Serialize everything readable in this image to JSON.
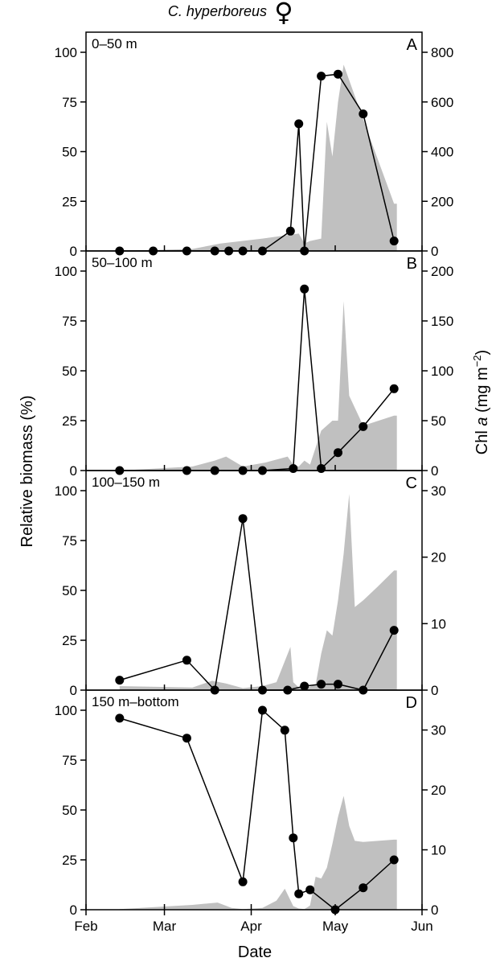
{
  "figure": {
    "title": "C. hyperboreus",
    "sex_symbol": "♀",
    "ylabel_left": "Relative biomass (%)",
    "ylabel_right_prefix": "Chl ",
    "ylabel_right_italic": "a",
    "ylabel_right_unit": " (mg m",
    "ylabel_right_sup": "−2",
    "ylabel_right_close": ")",
    "xlabel": "Date",
    "colors": {
      "biomass": "#000000",
      "chl_fill": "#c0c0c0"
    }
  },
  "chart_data": [
    {
      "type": "line",
      "letter": "A",
      "depth": "0–50 m",
      "x_ticks": [
        "Feb",
        "Mar",
        "Apr",
        "May",
        "Jun"
      ],
      "x_tick_days": [
        32,
        60,
        91,
        121,
        152
      ],
      "xlim": [
        32,
        152
      ],
      "ylim_left": [
        0,
        100
      ],
      "yticks_left": [
        0,
        25,
        50,
        75,
        100
      ],
      "ylim_right": [
        0,
        800
      ],
      "yticks_right": [
        0,
        200,
        400,
        600,
        800
      ],
      "biomass": {
        "x": [
          44,
          56,
          68,
          78,
          83,
          88,
          95,
          105,
          108,
          110,
          116,
          122,
          131,
          142
        ],
        "y": [
          0,
          0,
          0,
          0,
          0,
          0,
          0,
          10,
          64,
          0,
          88,
          89,
          69,
          5
        ]
      },
      "chl": {
        "x": [
          44,
          70,
          80,
          95,
          108,
          110,
          112,
          116,
          118,
          120,
          122,
          124,
          131,
          142,
          143
        ],
        "y": [
          0,
          8,
          30,
          50,
          70,
          30,
          40,
          50,
          520,
          380,
          600,
          750,
          530,
          190,
          190
        ]
      }
    },
    {
      "type": "line",
      "letter": "B",
      "depth": "50–100 m",
      "x_ticks": [
        "Feb",
        "Mar",
        "Apr",
        "May",
        "Jun"
      ],
      "x_tick_days": [
        32,
        60,
        91,
        121,
        152
      ],
      "xlim": [
        32,
        152
      ],
      "ylim_left": [
        0,
        100
      ],
      "yticks_left": [
        0,
        25,
        50,
        75,
        100
      ],
      "ylim_right": [
        0,
        200
      ],
      "yticks_right": [
        0,
        50,
        100,
        150,
        200
      ],
      "biomass": {
        "x": [
          44,
          68,
          78,
          88,
          95,
          106,
          110,
          116,
          122,
          131,
          142
        ],
        "y": [
          0,
          0,
          0,
          0,
          0,
          1,
          91,
          1,
          9,
          22,
          41
        ]
      },
      "chl": {
        "x": [
          44,
          70,
          78,
          82,
          88,
          96,
          104,
          106,
          108,
          110,
          112,
          116,
          120,
          122,
          124,
          126,
          131,
          142,
          143
        ],
        "y": [
          0,
          4,
          10,
          14,
          4,
          8,
          14,
          6,
          4,
          10,
          6,
          40,
          50,
          50,
          170,
          75,
          45,
          55,
          55
        ]
      }
    },
    {
      "type": "line",
      "letter": "C",
      "depth": "100–150 m",
      "x_ticks": [
        "Feb",
        "Mar",
        "Apr",
        "May",
        "Jun"
      ],
      "x_tick_days": [
        32,
        60,
        91,
        121,
        152
      ],
      "xlim": [
        32,
        152
      ],
      "ylim_left": [
        0,
        100
      ],
      "yticks_left": [
        0,
        25,
        50,
        75,
        100
      ],
      "ylim_right": [
        0,
        30
      ],
      "yticks_right": [
        0,
        10,
        20,
        30
      ],
      "biomass": {
        "x": [
          44,
          68,
          78,
          88,
          95,
          104,
          110,
          116,
          122,
          131,
          142
        ],
        "y": [
          5,
          15,
          0,
          86,
          0,
          0,
          2,
          3,
          3,
          0,
          30
        ]
      },
      "chl": {
        "x": [
          44,
          70,
          77,
          82,
          88,
          95,
          100,
          105,
          106,
          108,
          110,
          114,
          116,
          118,
          120,
          122,
          124,
          126,
          128,
          131,
          136,
          142,
          143
        ],
        "y": [
          0.6,
          0.4,
          1.4,
          1.0,
          0.3,
          0.6,
          1.2,
          6.5,
          1.2,
          0.4,
          0.3,
          0.8,
          5.5,
          9.0,
          8.2,
          13.5,
          20.5,
          29.5,
          12.5,
          13.5,
          15.5,
          18,
          18
        ]
      }
    },
    {
      "type": "line",
      "letter": "D",
      "depth": "150 m–bottom",
      "x_ticks": [
        "Feb",
        "Mar",
        "Apr",
        "May",
        "Jun"
      ],
      "x_tick_days": [
        32,
        60,
        91,
        121,
        152
      ],
      "xlim": [
        32,
        152
      ],
      "ylim_left": [
        0,
        100
      ],
      "yticks_left": [
        0,
        25,
        50,
        75,
        100
      ],
      "ylim_right": [
        0,
        33.3
      ],
      "yticks_right": [
        0,
        10,
        20,
        30
      ],
      "biomass": {
        "x": [
          44,
          68,
          88,
          95,
          103,
          106,
          108,
          112,
          121,
          131,
          142
        ],
        "y": [
          96,
          86,
          14,
          100,
          90,
          36,
          8,
          10,
          0,
          11,
          25
        ]
      },
      "chl": {
        "x": [
          44,
          70,
          79,
          84,
          88,
          95,
          100,
          103,
          106,
          108,
          110,
          112,
          114,
          116,
          118,
          120,
          122,
          124,
          126,
          128,
          131,
          142,
          143
        ],
        "y": [
          0.1,
          0.8,
          1.2,
          0.3,
          0.1,
          0.3,
          1.5,
          3.5,
          0.6,
          0.2,
          0.1,
          0.7,
          5.5,
          5.2,
          7.0,
          11.0,
          15.5,
          19.0,
          14.0,
          11.5,
          11.3,
          11.7,
          11.7
        ]
      }
    }
  ]
}
